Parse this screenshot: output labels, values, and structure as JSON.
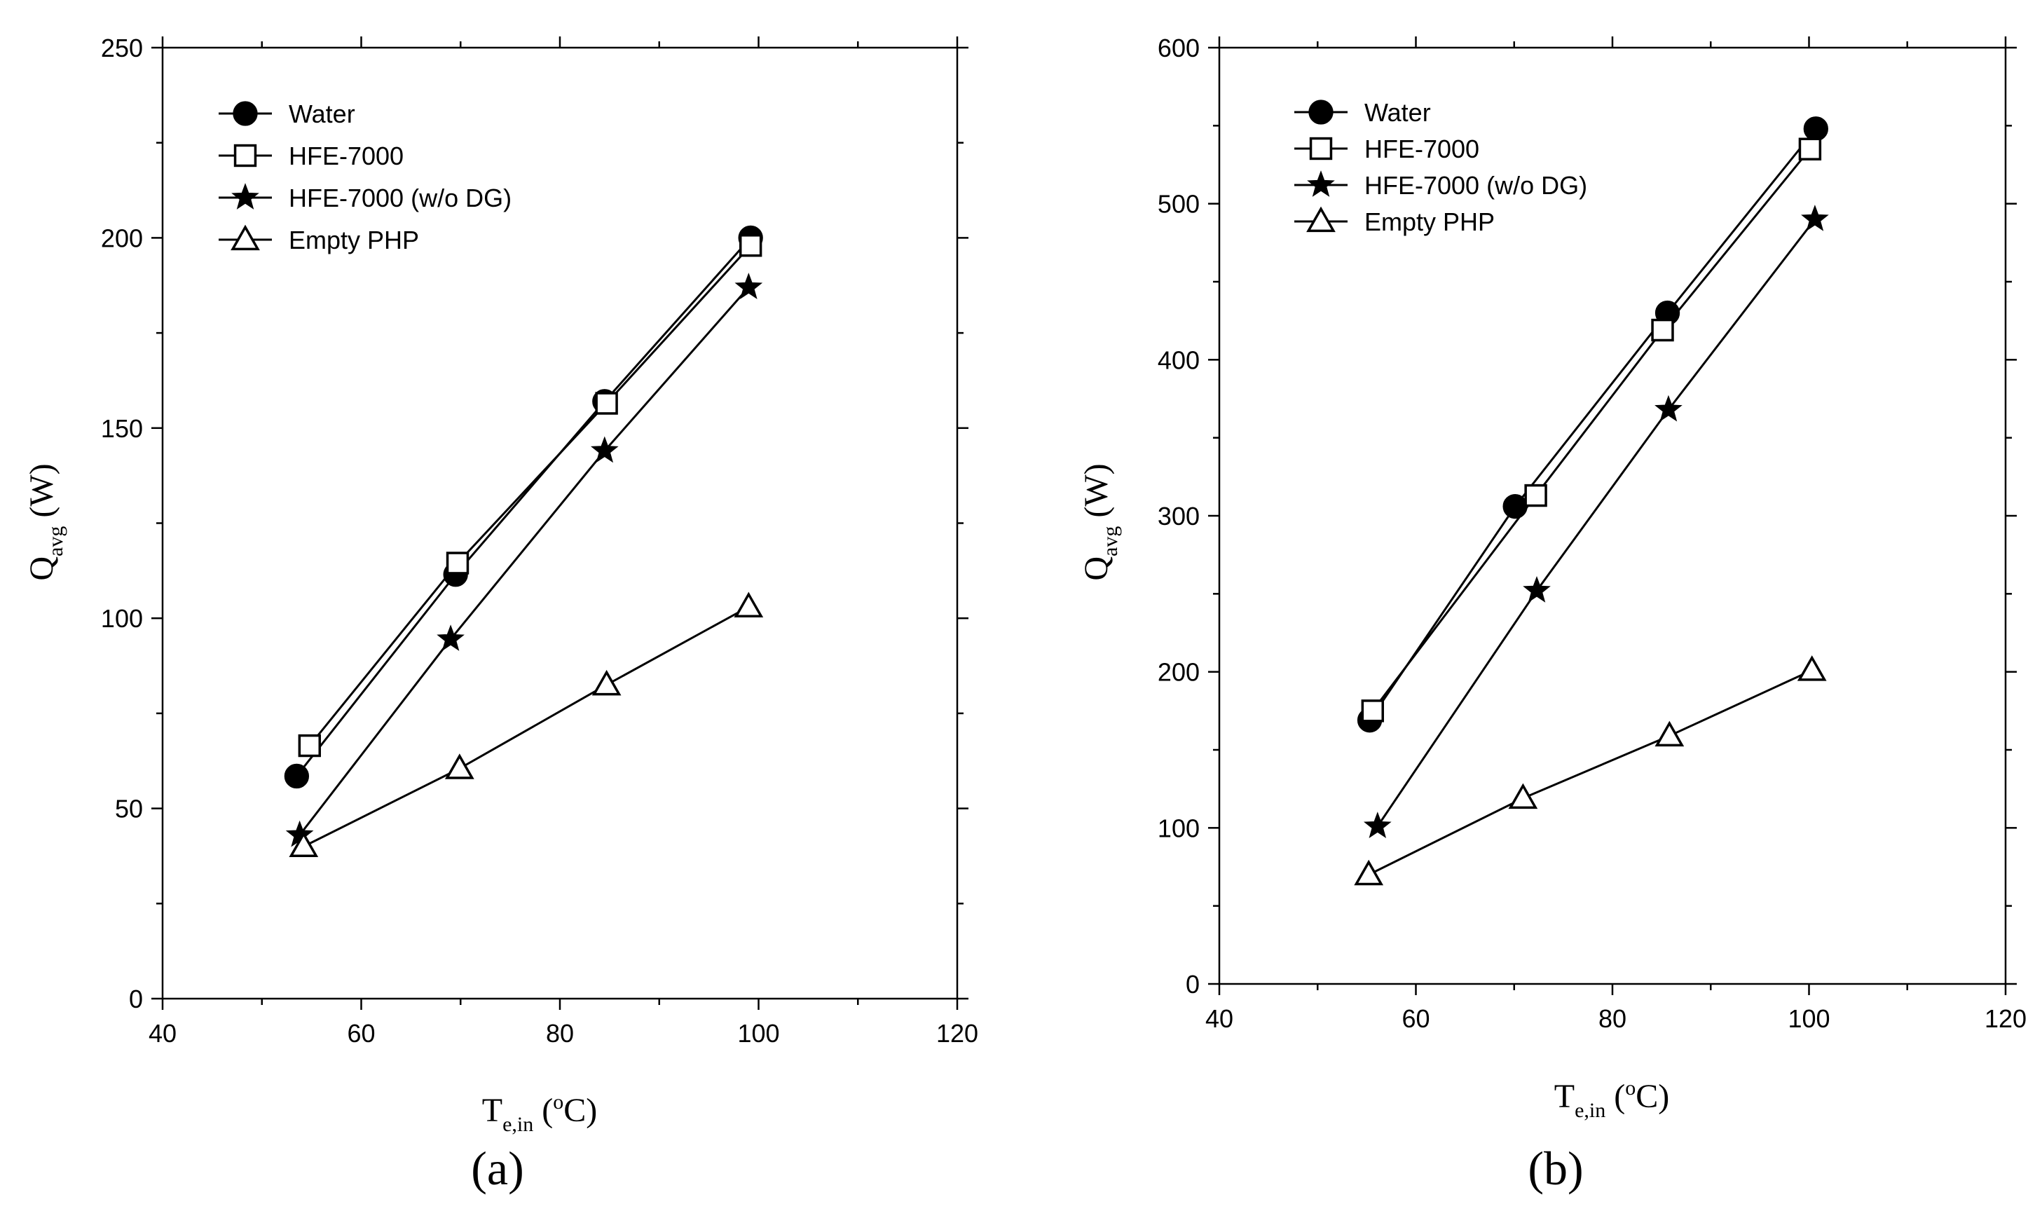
{
  "chart_data": [
    {
      "type": "line",
      "panel_label": "(a)",
      "xlabel": {
        "main": "T",
        "sub": "e,in",
        "units_open": " (",
        "degree": "o",
        "units_close": "C)"
      },
      "ylabel": {
        "main": "Q",
        "sub": "avg",
        "units": " (W)"
      },
      "xlim": [
        40,
        120
      ],
      "ylim": [
        0,
        250
      ],
      "xticks": [
        40,
        60,
        80,
        100,
        120
      ],
      "yticks": [
        0,
        50,
        100,
        150,
        200,
        250
      ],
      "legend_position": "top-left",
      "series": [
        {
          "name": "Water",
          "marker": "filled-circle",
          "x": [
            53.5,
            69.5,
            84.5,
            99.2
          ],
          "y": [
            58.5,
            111.5,
            157,
            200
          ]
        },
        {
          "name": "HFE-7000",
          "marker": "open-square",
          "x": [
            54.8,
            69.7,
            84.7,
            99.2
          ],
          "y": [
            66.5,
            114.5,
            156.5,
            198
          ]
        },
        {
          "name": "HFE-7000 (w/o DG)",
          "marker": "filled-star",
          "x": [
            53.8,
            69.0,
            84.5,
            99.0
          ],
          "y": [
            43,
            94.5,
            144,
            187
          ]
        },
        {
          "name": "Empty PHP",
          "marker": "open-triangle",
          "x": [
            54.2,
            69.9,
            84.7,
            99.0
          ],
          "y": [
            40,
            60.5,
            82.5,
            103
          ]
        }
      ]
    },
    {
      "type": "line",
      "panel_label": "(b)",
      "xlabel": {
        "main": "T",
        "sub": "e,in",
        "units_open": " (",
        "degree": "o",
        "units_close": "C)"
      },
      "ylabel": {
        "main": "Q",
        "sub": "avg",
        "units": " (W)"
      },
      "xlim": [
        40,
        120
      ],
      "ylim": [
        0,
        600
      ],
      "xticks": [
        40,
        60,
        80,
        100,
        120
      ],
      "yticks": [
        0,
        100,
        200,
        300,
        400,
        500,
        600
      ],
      "legend_position": "top-left",
      "series": [
        {
          "name": "Water",
          "marker": "filled-circle",
          "x": [
            55.3,
            70.1,
            85.6,
            100.7
          ],
          "y": [
            169,
            306,
            430,
            548
          ]
        },
        {
          "name": "HFE-7000",
          "marker": "open-square",
          "x": [
            55.6,
            72.2,
            85.1,
            100.1
          ],
          "y": [
            175,
            313,
            419,
            535
          ]
        },
        {
          "name": "HFE-7000 (w/o DG)",
          "marker": "filled-star",
          "x": [
            56.1,
            72.3,
            85.7,
            100.6
          ],
          "y": [
            101,
            252,
            368,
            490
          ]
        },
        {
          "name": "Empty PHP",
          "marker": "open-triangle",
          "x": [
            55.2,
            70.9,
            85.8,
            100.3
          ],
          "y": [
            70,
            119,
            159,
            201
          ]
        }
      ]
    }
  ]
}
